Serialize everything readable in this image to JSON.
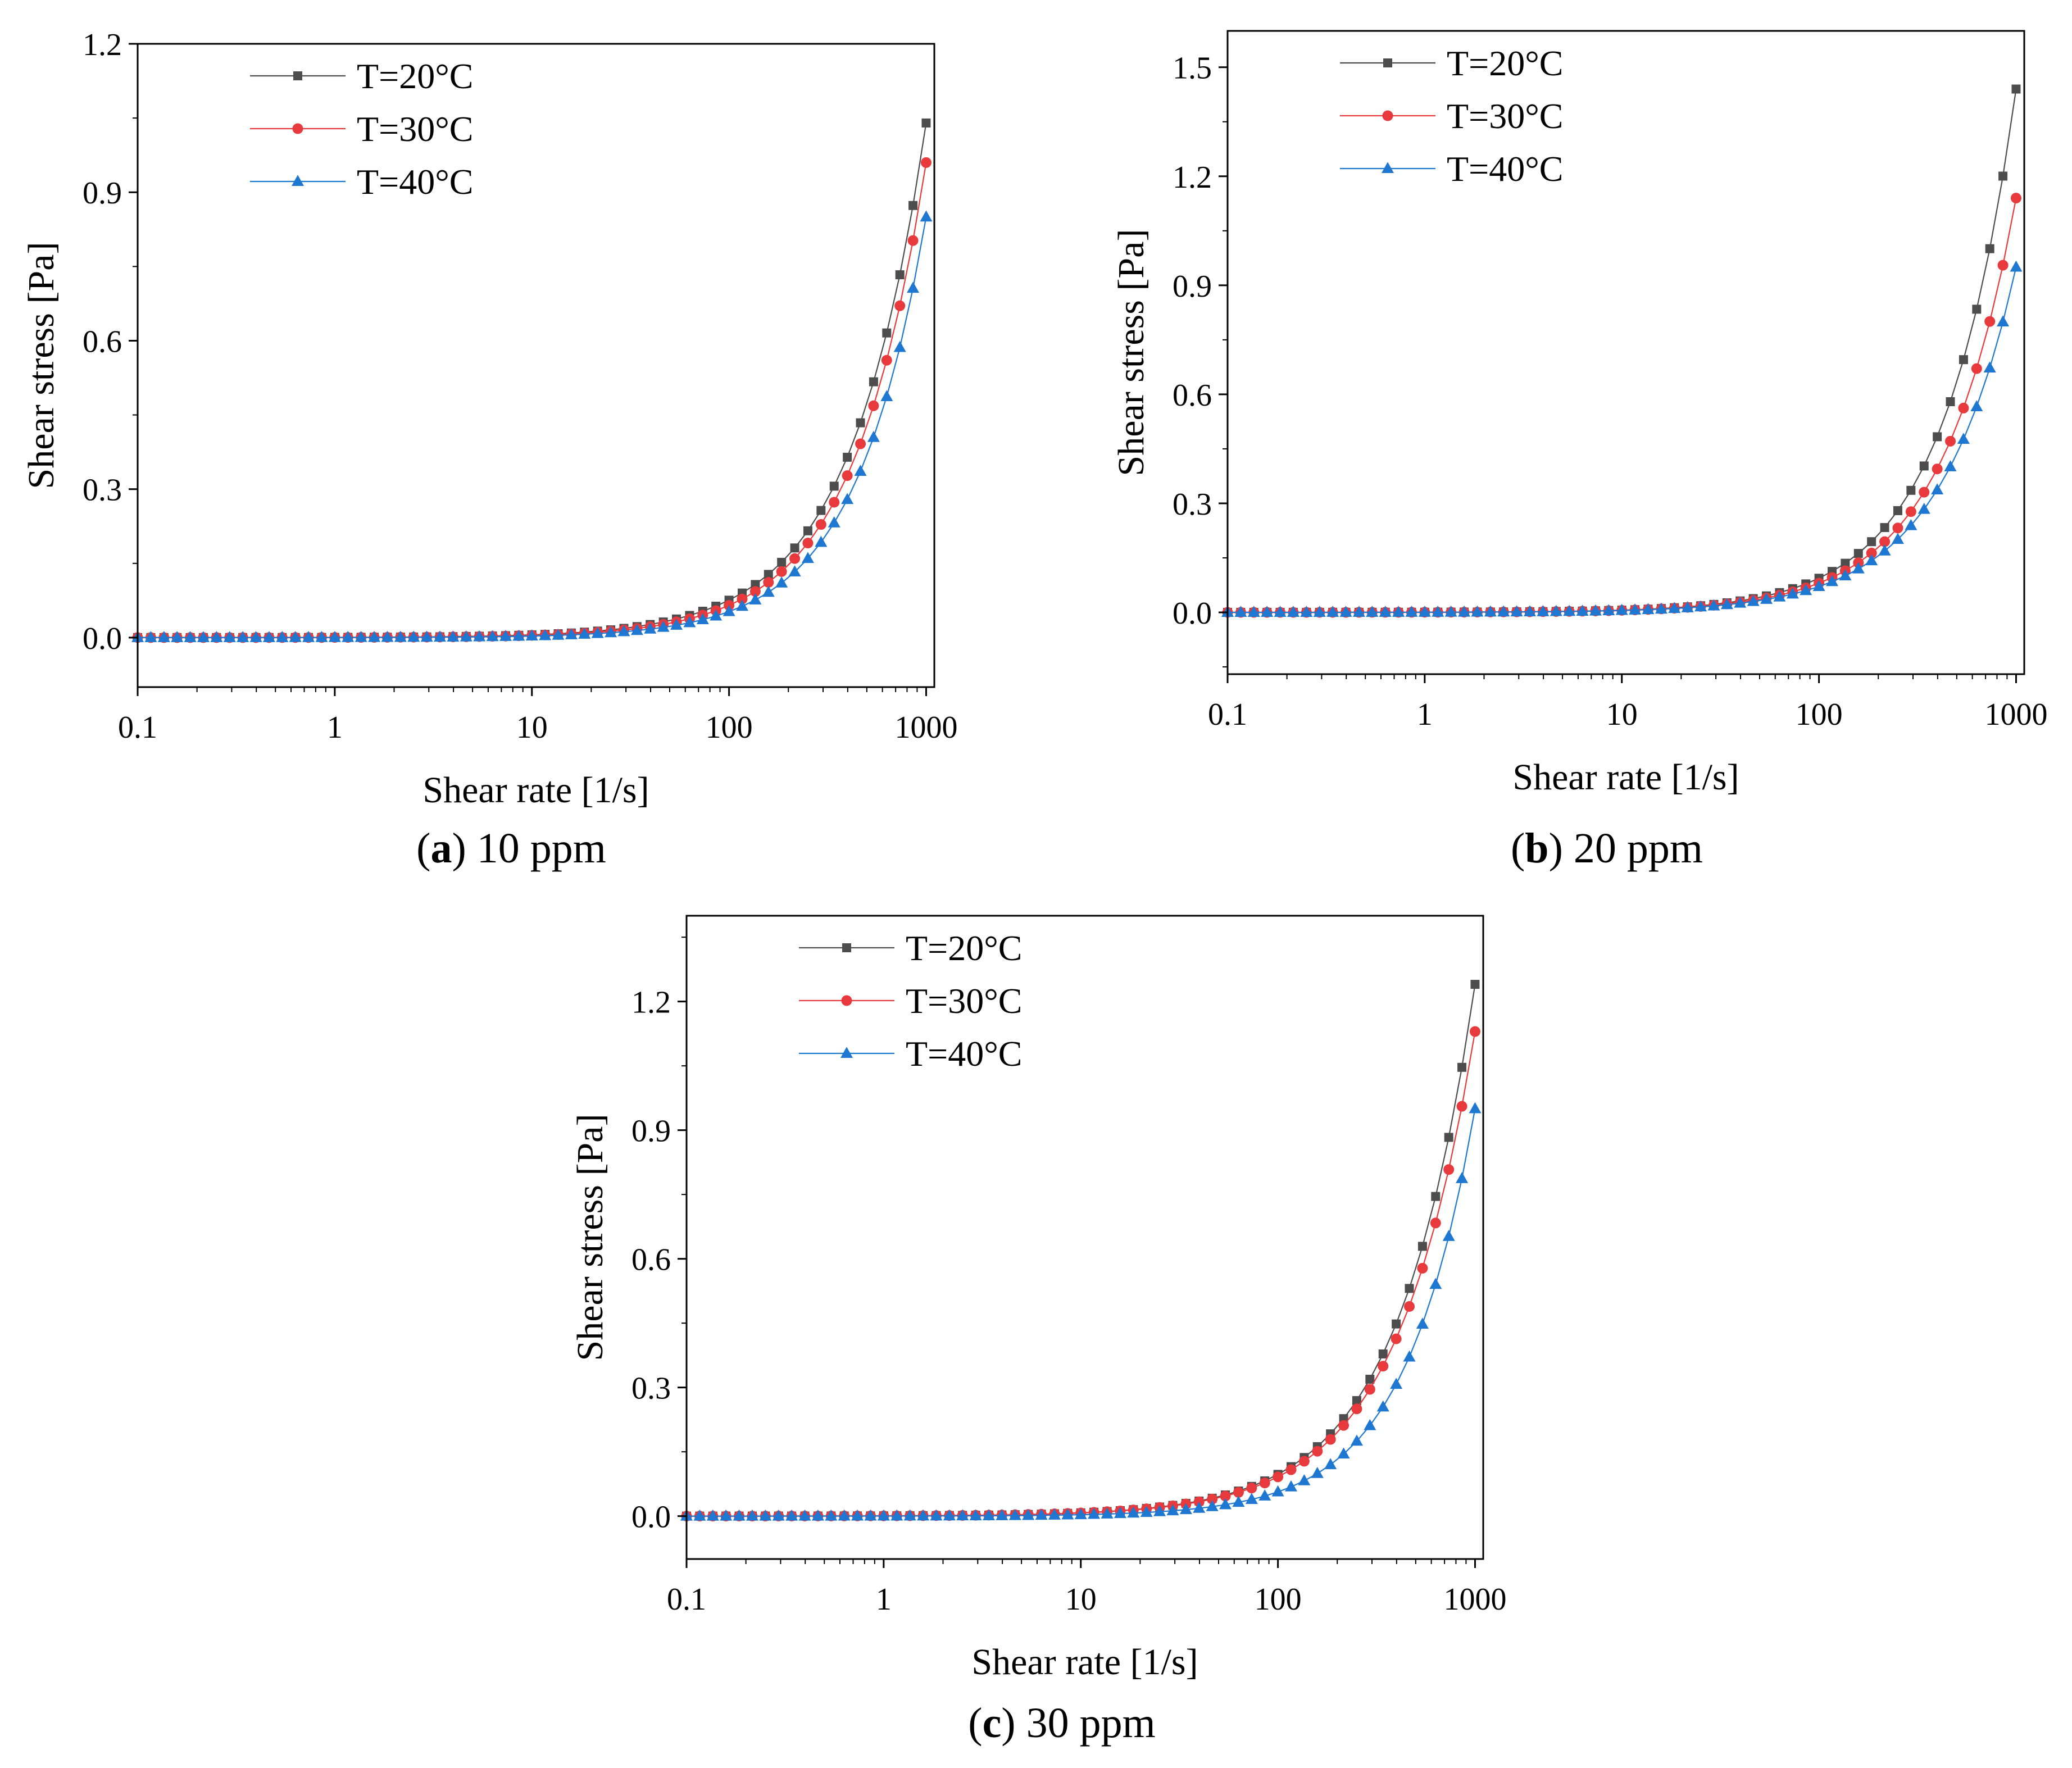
{
  "chart_data": [
    {
      "type": "line",
      "panel_letter": "a",
      "caption": "10 ppm",
      "xlabel": "Shear rate [1/s]",
      "ylabel": "Shear stress [Pa]",
      "xscale": "log",
      "xlim": [
        0.1,
        1100
      ],
      "ylim": [
        -0.1,
        1.2
      ],
      "x_ticks": [
        "0.1",
        "1",
        "10",
        "100",
        "1000"
      ],
      "y_ticks": [
        "0.0",
        "0.3",
        "0.6",
        "0.9",
        "1.2"
      ],
      "legend_position": "top-left",
      "series": [
        {
          "name": "T=20°C",
          "color": "#4d4d4d",
          "marker": "square",
          "end_value": 1.04,
          "knee": 0.0004
        },
        {
          "name": "T=30°C",
          "color": "#e8393c",
          "marker": "circle",
          "end_value": 0.96,
          "knee": 0.0003
        },
        {
          "name": "T=40°C",
          "color": "#1e78d2",
          "marker": "triangle",
          "end_value": 0.85,
          "knee": 0.0002
        }
      ]
    },
    {
      "type": "line",
      "panel_letter": "b",
      "caption": "20 ppm",
      "xlabel": "Shear rate [1/s]",
      "ylabel": "Shear stress [Pa]",
      "xscale": "log",
      "xlim": [
        0.1,
        1100
      ],
      "ylim": [
        -0.17,
        1.6
      ],
      "x_ticks": [
        "0.1",
        "1",
        "10",
        "100",
        "1000"
      ],
      "y_ticks": [
        "0.0",
        "0.3",
        "0.6",
        "0.9",
        "1.2",
        "1.5"
      ],
      "legend_position": "top-left",
      "series": [
        {
          "name": "T=20°C",
          "color": "#4d4d4d",
          "marker": "square",
          "end_value": 1.44,
          "knee": 0.0004
        },
        {
          "name": "T=30°C",
          "color": "#e8393c",
          "marker": "circle",
          "end_value": 1.14,
          "knee": 0.0004
        },
        {
          "name": "T=40°C",
          "color": "#1e78d2",
          "marker": "triangle",
          "end_value": 0.95,
          "knee": 0.0004
        }
      ]
    },
    {
      "type": "line",
      "panel_letter": "c",
      "caption": "30 ppm",
      "xlabel": "Shear rate [1/s]",
      "ylabel": "Shear stress [Pa]",
      "xscale": "log",
      "xlim": [
        0.1,
        1100
      ],
      "ylim": [
        -0.1,
        1.4
      ],
      "x_ticks": [
        "0.1",
        "1",
        "10",
        "100",
        "1000"
      ],
      "y_ticks": [
        "0.0",
        "0.3",
        "0.6",
        "0.9",
        "1.2"
      ],
      "legend_position": "top-left",
      "series": [
        {
          "name": "T=20°C",
          "color": "#4d4d4d",
          "marker": "square",
          "end_value": 1.24,
          "knee": 0.0006
        },
        {
          "name": "T=30°C",
          "color": "#e8393c",
          "marker": "circle",
          "end_value": 1.13,
          "knee": 0.0006
        },
        {
          "name": "T=40°C",
          "color": "#1e78d2",
          "marker": "triangle",
          "end_value": 0.95,
          "knee": 0.0002
        }
      ]
    }
  ]
}
